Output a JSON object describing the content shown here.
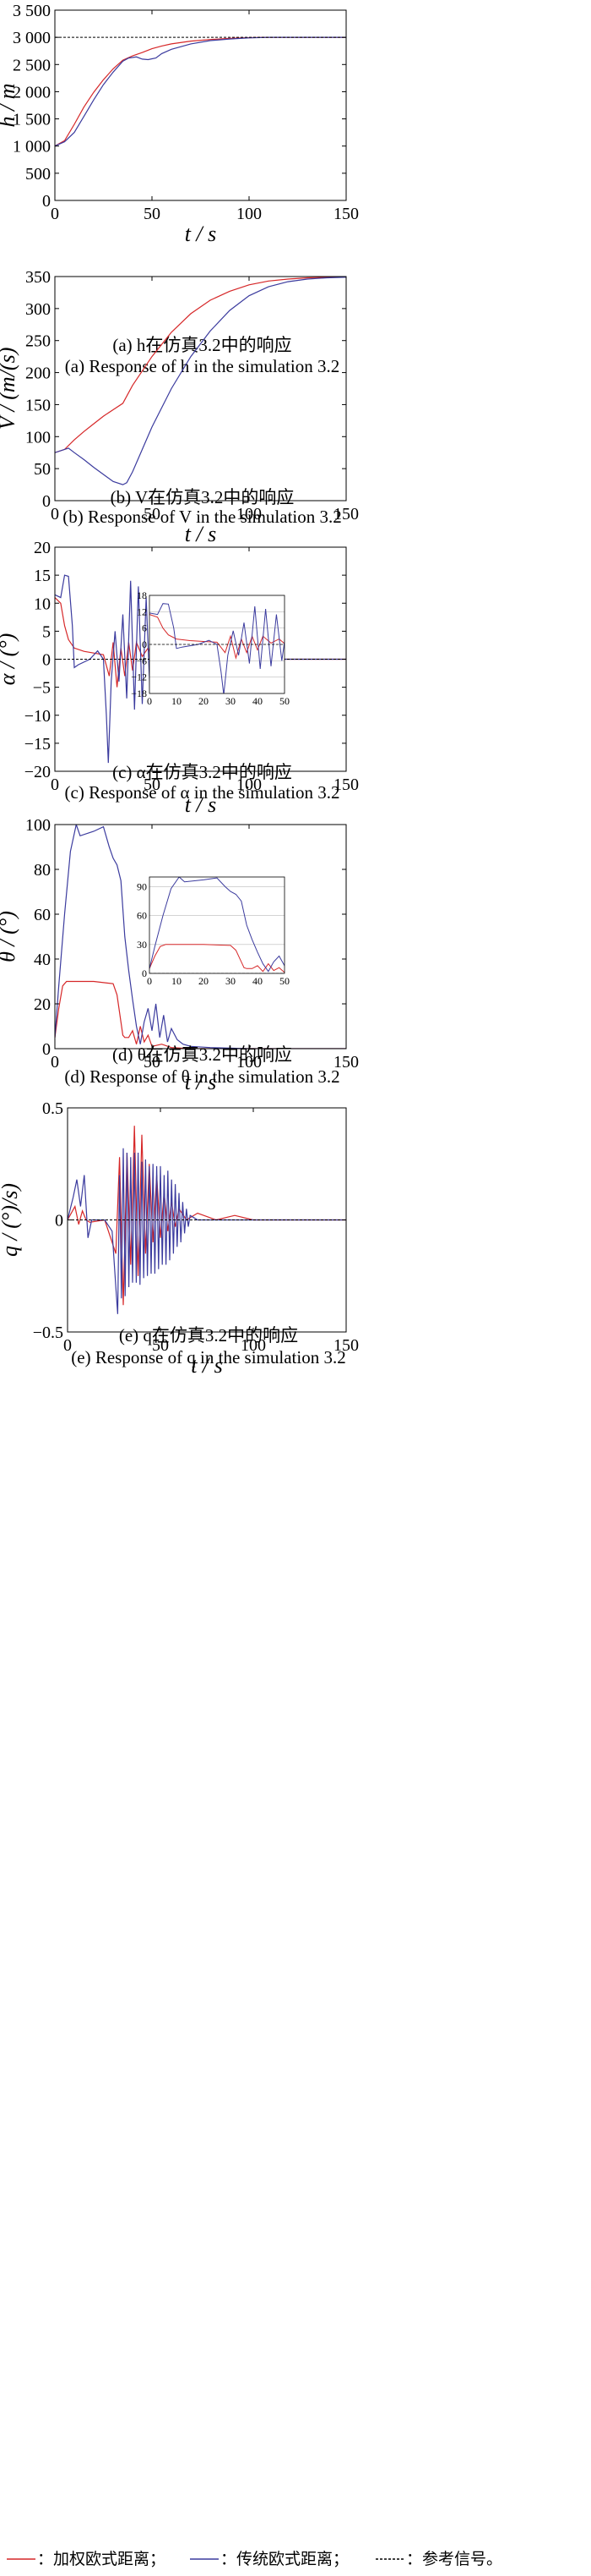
{
  "colors": {
    "weighted": "#d62728",
    "traditional": "#3b3b9e",
    "reference": "#000000"
  },
  "legend": [
    {
      "key": "weighted",
      "text": "：加权欧式距离；"
    },
    {
      "key": "traditional",
      "text": "：传统欧式距离；"
    },
    {
      "key": "reference",
      "text": "：参考信号。"
    }
  ],
  "chart_data": [
    {
      "type": "line",
      "id": "h",
      "ylabel_var": "h",
      "ylabel_unit": "m",
      "xlabel_var": "t",
      "xlabel_unit": "s",
      "xlim": [
        0,
        150
      ],
      "ylim": [
        0,
        3500
      ],
      "xticks": [
        0,
        50,
        100,
        150
      ],
      "yticks": [
        0,
        500,
        1000,
        1500,
        2000,
        2500,
        3000,
        3500
      ],
      "yticklabels": [
        "0",
        "500",
        "1 000",
        "1 500",
        "2 000",
        "2 500",
        "3 000",
        "3 500"
      ],
      "caption_cn": "(a) h在仿真3.2中的响应",
      "caption_en": "(a) Response of h in the simulation 3.2",
      "series": [
        {
          "key": "weighted",
          "x": [
            0,
            5,
            10,
            15,
            20,
            25,
            30,
            35,
            40,
            45,
            50,
            55,
            60,
            70,
            80,
            90,
            100,
            110,
            120,
            150
          ],
          "y": [
            1000,
            1100,
            1400,
            1720,
            1990,
            2220,
            2420,
            2580,
            2660,
            2720,
            2790,
            2840,
            2880,
            2930,
            2960,
            2980,
            2995,
            3000,
            3000,
            3000
          ]
        },
        {
          "key": "traditional",
          "x": [
            0,
            5,
            10,
            15,
            20,
            25,
            30,
            35,
            38,
            42,
            45,
            48,
            52,
            55,
            60,
            70,
            80,
            90,
            100,
            110,
            120,
            150
          ],
          "y": [
            1000,
            1080,
            1250,
            1550,
            1850,
            2130,
            2360,
            2560,
            2620,
            2640,
            2600,
            2590,
            2620,
            2700,
            2780,
            2880,
            2940,
            2970,
            2990,
            3000,
            3000,
            3000
          ]
        },
        {
          "key": "reference",
          "x": [
            0,
            150
          ],
          "y": [
            3000,
            3000
          ]
        }
      ]
    },
    {
      "type": "line",
      "id": "V",
      "ylabel_var": "V",
      "ylabel_unit": "(m/(s)",
      "xlabel_var": "t",
      "xlabel_unit": "s",
      "xlim": [
        0,
        150
      ],
      "ylim": [
        0,
        350
      ],
      "xticks": [
        0,
        50,
        100,
        150
      ],
      "yticks": [
        0,
        50,
        100,
        150,
        200,
        250,
        300,
        350
      ],
      "yticklabels": [
        "0",
        "50",
        "100",
        "150",
        "200",
        "250",
        "300",
        "350"
      ],
      "caption_cn": "(b) V在仿真3.2中的响应",
      "caption_en": "(b) Response of V in the simulation 3.2",
      "series": [
        {
          "key": "weighted",
          "x": [
            0,
            5,
            10,
            15,
            20,
            25,
            30,
            35,
            40,
            50,
            60,
            70,
            80,
            90,
            100,
            110,
            120,
            130,
            140,
            150
          ],
          "y": [
            75,
            80,
            95,
            108,
            120,
            132,
            142,
            152,
            180,
            225,
            263,
            292,
            313,
            327,
            337,
            343,
            346,
            348,
            349,
            350
          ]
        },
        {
          "key": "traditional",
          "x": [
            0,
            5,
            7,
            10,
            15,
            20,
            25,
            30,
            35,
            37,
            40,
            45,
            50,
            60,
            70,
            80,
            90,
            100,
            110,
            120,
            130,
            140,
            150
          ],
          "y": [
            75,
            80,
            82,
            75,
            64,
            52,
            41,
            30,
            25,
            28,
            45,
            80,
            115,
            175,
            225,
            265,
            297,
            320,
            334,
            342,
            346,
            348,
            349
          ]
        }
      ]
    },
    {
      "type": "line",
      "id": "alpha",
      "ylabel_var": "α",
      "ylabel_unit": "(°)",
      "xlabel_var": "t",
      "xlabel_unit": "s",
      "xlim": [
        0,
        150
      ],
      "ylim": [
        -20,
        20
      ],
      "xticks": [
        0,
        50,
        100,
        150
      ],
      "yticks": [
        -20,
        -15,
        -10,
        -5,
        0,
        5,
        10,
        15,
        20
      ],
      "yticklabels": [
        "−20",
        "−15",
        "−10",
        "−5",
        "0",
        "5",
        "10",
        "15",
        "20"
      ],
      "caption_cn": "(c) α在仿真3.2中的响应",
      "caption_en": "(c) Response of α in the simulation 3.2",
      "inset": {
        "xlim": [
          0,
          50
        ],
        "ylim": [
          -18,
          18
        ],
        "xticks": [
          0,
          10,
          20,
          30,
          40,
          50
        ],
        "yticks": [
          -18,
          -12,
          -6,
          0,
          6,
          12,
          18
        ]
      },
      "series": [
        {
          "key": "weighted",
          "x": [
            0,
            3,
            5,
            7,
            10,
            15,
            20,
            25,
            28,
            30,
            32,
            34,
            36,
            38,
            40,
            42,
            45,
            48,
            50,
            55,
            60,
            70,
            80,
            100,
            150
          ],
          "y": [
            11,
            10,
            6,
            3.5,
            2,
            1.4,
            1.1,
            0.8,
            -3,
            3,
            -5,
            2,
            -3,
            3,
            -2,
            3,
            0.5,
            2,
            0.3,
            0.6,
            0.2,
            0.1,
            0,
            0,
            0
          ]
        },
        {
          "key": "traditional",
          "x": [
            0,
            3,
            5,
            7,
            9,
            10,
            12,
            18,
            22,
            25,
            26.5,
            27.5,
            29,
            31,
            33,
            35,
            37,
            39,
            41,
            43,
            45,
            47,
            49,
            51,
            53,
            55,
            57,
            59,
            61,
            63,
            65,
            67,
            70,
            80,
            100,
            150
          ],
          "y": [
            11.5,
            11,
            15,
            14.8,
            6,
            -1.5,
            -1,
            0,
            1.5,
            0,
            -10,
            -18.5,
            -4,
            5,
            -4,
            8,
            -7,
            14,
            -9,
            13,
            -8,
            11,
            -6,
            8,
            -4,
            6,
            -3,
            4,
            -2,
            3,
            -1.5,
            1,
            0.4,
            0.1,
            0,
            0
          ]
        },
        {
          "key": "reference",
          "x": [
            0,
            150
          ],
          "y": [
            0,
            0
          ]
        }
      ]
    },
    {
      "type": "line",
      "id": "theta",
      "ylabel_var": "θ",
      "ylabel_unit": "(°)",
      "xlabel_var": "t",
      "xlabel_unit": "s",
      "xlim": [
        0,
        150
      ],
      "ylim": [
        0,
        100
      ],
      "xticks": [
        0,
        50,
        100,
        150
      ],
      "yticks": [
        0,
        20,
        40,
        60,
        80,
        100
      ],
      "yticklabels": [
        "0",
        "20",
        "40",
        "60",
        "80",
        "100"
      ],
      "caption_cn": "(d) θ在仿真3.2中的响应",
      "caption_en": "(d) Response of θ in the simulation 3.2",
      "inset": {
        "xlim": [
          0,
          50
        ],
        "ylim": [
          0,
          100
        ],
        "xticks": [
          0,
          10,
          20,
          30,
          40,
          50
        ],
        "yticks": [
          0,
          30,
          60,
          90
        ]
      },
      "series": [
        {
          "key": "weighted",
          "x": [
            0,
            2,
            4,
            6,
            10,
            20,
            30,
            32,
            34,
            35,
            36,
            38,
            40,
            42,
            44,
            46,
            48,
            50,
            55,
            60,
            70,
            150
          ],
          "y": [
            5,
            18,
            28,
            30,
            30,
            30,
            29,
            24,
            12,
            6,
            5,
            5,
            8,
            2,
            10,
            3,
            6,
            1,
            2,
            0.5,
            0,
            0
          ]
        },
        {
          "key": "traditional",
          "x": [
            0,
            2,
            5,
            8,
            11,
            13,
            20,
            25,
            28,
            30,
            32,
            34,
            36,
            38,
            40,
            42,
            44,
            46,
            48,
            50,
            52,
            54,
            56,
            58,
            60,
            63,
            66,
            70,
            80,
            100,
            150
          ],
          "y": [
            5,
            28,
            60,
            88,
            100,
            95,
            97,
            99,
            90,
            85,
            82,
            75,
            50,
            35,
            22,
            10,
            2,
            12,
            18,
            8,
            20,
            5,
            15,
            3,
            9,
            4,
            2,
            1,
            0.5,
            0,
            0
          ]
        },
        {
          "key": "reference",
          "x": [
            0,
            150
          ],
          "y": [
            0,
            0
          ]
        }
      ]
    },
    {
      "type": "line",
      "id": "q",
      "ylabel_var": "q",
      "ylabel_unit": "(°)/s)",
      "xlabel_var": "t",
      "xlabel_unit": "s",
      "xlim": [
        0,
        150
      ],
      "ylim": [
        -0.5,
        0.5
      ],
      "xticks": [
        0,
        50,
        100,
        150
      ],
      "yticks": [
        -0.5,
        0,
        0.5
      ],
      "yticklabels": [
        "−0.5",
        "0",
        "0.5"
      ],
      "caption_cn": "(e) q在仿真3.2中的响应",
      "caption_en": "(e) Response of q in the simulation 3.2",
      "series": [
        {
          "key": "weighted",
          "x": [
            0,
            4,
            6,
            8,
            10,
            12,
            20,
            26,
            28,
            30,
            32,
            34,
            36,
            38,
            40,
            42,
            44,
            46,
            48,
            50,
            52,
            54,
            56,
            58,
            60,
            64,
            70,
            80,
            90,
            100,
            150
          ],
          "y": [
            0,
            0.06,
            -0.02,
            0.04,
            0,
            -0.01,
            0,
            -0.15,
            0.28,
            -0.38,
            0.3,
            -0.2,
            0.42,
            -0.25,
            0.38,
            -0.15,
            0.25,
            -0.1,
            0.2,
            -0.08,
            0.12,
            -0.05,
            0.08,
            -0.03,
            0.05,
            0,
            0.03,
            0,
            0.02,
            0,
            0
          ]
        },
        {
          "key": "traditional",
          "x": [
            0,
            3,
            5,
            7,
            9,
            11,
            13,
            20,
            24,
            26,
            27,
            28,
            29,
            30,
            31,
            32,
            33,
            34,
            35,
            36,
            37,
            38,
            39,
            40,
            41,
            42,
            43,
            44,
            45,
            46,
            47,
            48,
            49,
            50,
            51,
            52,
            53,
            54,
            55,
            56,
            57,
            58,
            59,
            60,
            61,
            62,
            63,
            64,
            65,
            66,
            68,
            70,
            80,
            150
          ],
          "y": [
            0,
            0.1,
            0.18,
            0.06,
            0.2,
            -0.08,
            0,
            0,
            -0.05,
            -0.3,
            -0.42,
            0.2,
            -0.35,
            0.32,
            -0.34,
            0.3,
            -0.3,
            0.28,
            -0.28,
            0.3,
            -0.28,
            0.3,
            -0.29,
            0.26,
            -0.26,
            0.27,
            -0.25,
            0.24,
            -0.24,
            0.25,
            -0.24,
            0.24,
            -0.22,
            0.24,
            -0.2,
            0.2,
            -0.2,
            0.22,
            -0.18,
            0.18,
            -0.15,
            0.16,
            -0.12,
            0.12,
            -0.1,
            0.08,
            -0.06,
            0.05,
            -0.03,
            0.02,
            0.01,
            0,
            0,
            0
          ]
        },
        {
          "key": "reference",
          "x": [
            0,
            150
          ],
          "y": [
            0,
            0
          ]
        }
      ]
    }
  ]
}
